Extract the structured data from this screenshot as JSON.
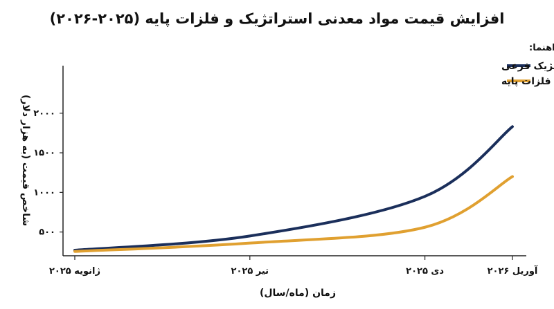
{
  "chart_data": {
    "type": "line",
    "title": "افزایش قیمت مواد معدنی استراتژیک و فلزات پایه (۲۰۲۵-۲۰۲۶)",
    "xlabel": "زمان (ماه/سال)",
    "ylabel": "شاخص قیمت (به هزار دلار)",
    "categories": [
      "ژانویه ۲۰۲۵",
      "تیر ۲۰۲۵",
      "دی ۲۰۲۵",
      "آوریل ۲۰۲۶"
    ],
    "x": [
      0,
      6,
      12,
      15
    ],
    "yticks": [
      500,
      1000,
      1500,
      2000
    ],
    "ytick_labels": [
      "۵۰۰",
      "۱۰۰۰",
      "۱۵۰۰",
      "۲۰۰۰"
    ],
    "ylim": [
      200,
      2600
    ],
    "legend_title": "راهنما:",
    "legend_position": "top-right",
    "grid": false,
    "series": [
      {
        "name": "مواد معدنی استراتژیک فرعی",
        "color": "#1b2f5b",
        "values": [
          270,
          450,
          950,
          1830
        ]
      },
      {
        "name": "فلزات پایه",
        "color": "#e0a030",
        "values": [
          255,
          360,
          560,
          1200
        ]
      }
    ]
  }
}
